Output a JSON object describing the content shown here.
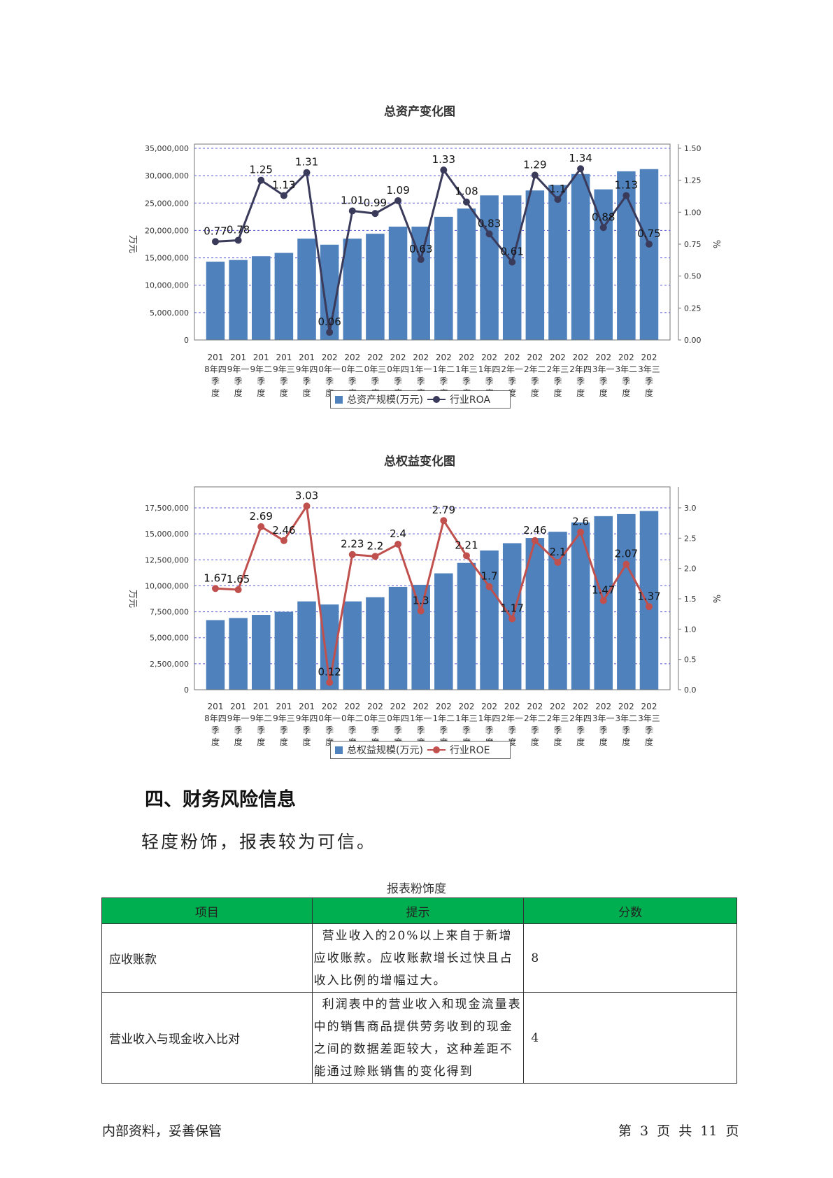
{
  "charts": [
    {
      "title": "总资产变化图",
      "bar_legend": "总资产规模(万元)",
      "line_legend": "行业ROA",
      "left_axis_label": "万元",
      "right_axis_label": "%",
      "bar_color": "#4f81bd",
      "line_color": "#3a3a5a",
      "left_ticks": [
        "0",
        "5,000,000",
        "10,000,000",
        "15,000,000",
        "20,000,000",
        "25,000,000",
        "30,000,000",
        "35,000,000"
      ],
      "right_ticks": [
        "0.00",
        "0.25",
        "0.50",
        "0.75",
        "1.00",
        "1.25",
        "1.50"
      ]
    },
    {
      "title": "总权益变化图",
      "bar_legend": "总权益规模(万元)",
      "line_legend": "行业ROE",
      "left_axis_label": "万元",
      "right_axis_label": "%",
      "bar_color": "#4f81bd",
      "line_color": "#c0504d",
      "left_ticks": [
        "0",
        "2,500,000",
        "5,000,000",
        "7,500,000",
        "10,000,000",
        "12,500,000",
        "15,000,000",
        "17,500,000"
      ],
      "right_ticks": [
        "0.0",
        "0.5",
        "1.0",
        "1.5",
        "2.0",
        "2.5",
        "3.0"
      ]
    }
  ],
  "chart_data": [
    {
      "type": "bar",
      "title": "总资产变化图",
      "categories": [
        "2018年四季度",
        "2019年一季度",
        "2019年二季度",
        "2019年三季度",
        "2019年四季度",
        "2020年一季度",
        "2020年二季度",
        "2020年三季度",
        "2020年四季度",
        "2021年一季度",
        "2021年二季度",
        "2021年三季度",
        "2021年四季度",
        "2022年一季度",
        "2022年二季度",
        "2022年三季度",
        "2022年四季度",
        "2023年一季度",
        "2023年二季度",
        "2023年三季度"
      ],
      "series": [
        {
          "name": "总资产规模(万元)",
          "type": "bar",
          "axis": "left",
          "values": [
            14300000,
            14600000,
            15300000,
            15900000,
            18500000,
            17400000,
            18500000,
            19400000,
            20700000,
            20700000,
            22500000,
            24000000,
            26400000,
            26400000,
            27300000,
            28300000,
            30300000,
            27500000,
            30800000,
            31200000
          ]
        },
        {
          "name": "行业ROA",
          "type": "line",
          "axis": "right",
          "values": [
            0.77,
            0.78,
            1.25,
            1.13,
            1.31,
            0.06,
            1.01,
            0.99,
            1.09,
            0.63,
            1.33,
            1.08,
            0.83,
            0.61,
            1.29,
            1.1,
            1.34,
            0.88,
            1.13,
            0.75
          ]
        }
      ],
      "ylabel": "万元",
      "y2label": "%",
      "ylim": [
        0,
        35000000
      ],
      "y2lim": [
        0,
        1.5
      ],
      "grid": true,
      "legend": "bottom"
    },
    {
      "type": "bar",
      "title": "总权益变化图",
      "categories": [
        "2018年四季度",
        "2019年一季度",
        "2019年二季度",
        "2019年三季度",
        "2019年四季度",
        "2020年一季度",
        "2020年二季度",
        "2020年三季度",
        "2020年四季度",
        "2021年一季度",
        "2021年二季度",
        "2021年三季度",
        "2021年四季度",
        "2022年一季度",
        "2022年二季度",
        "2022年三季度",
        "2022年四季度",
        "2023年一季度",
        "2023年二季度",
        "2023年三季度"
      ],
      "series": [
        {
          "name": "总权益规模(万元)",
          "type": "bar",
          "axis": "left",
          "values": [
            6700000,
            6900000,
            7200000,
            7500000,
            8500000,
            8200000,
            8500000,
            8900000,
            9900000,
            10100000,
            11200000,
            12200000,
            13400000,
            14100000,
            14600000,
            15200000,
            16100000,
            16700000,
            16900000,
            17200000
          ]
        },
        {
          "name": "行业ROE",
          "type": "line",
          "axis": "right",
          "values": [
            1.67,
            1.65,
            2.69,
            2.46,
            3.03,
            0.12,
            2.23,
            2.2,
            2.4,
            1.3,
            2.79,
            2.21,
            1.7,
            1.17,
            2.46,
            2.1,
            2.6,
            1.47,
            2.07,
            1.37
          ]
        }
      ],
      "ylabel": "万元",
      "y2label": "%",
      "ylim": [
        0,
        17500000
      ],
      "y2lim": [
        0,
        3.0
      ],
      "grid": true,
      "legend": "bottom"
    }
  ],
  "section": {
    "heading": "四、财务风险信息",
    "text": "轻度粉饰，报表较为可信。"
  },
  "table": {
    "caption": "报表粉饰度",
    "headers": [
      "项目",
      "提示",
      "分数"
    ],
    "rows": [
      {
        "item": "应收账款",
        "hint": "营业收入的20%以上来自于新增应收账款。应收账款增长过快且占收入比例的增幅过大。",
        "score": "8"
      },
      {
        "item": "营业收入与现金收入比对",
        "hint": "利润表中的营业收入和现金流量表中的销售商品提供劳务收到的现金之间的数据差距较大，这种差距不能通过赊账销售的变化得到",
        "score": "4"
      }
    ]
  },
  "footer": {
    "left": "内部资料，妥善保管",
    "right": "第 3 页  共 11 页"
  }
}
